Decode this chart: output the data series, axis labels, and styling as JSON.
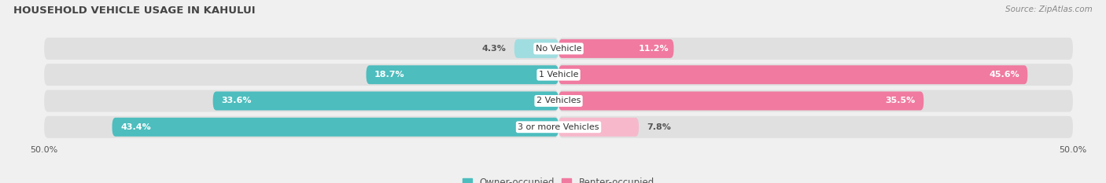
{
  "title": "HOUSEHOLD VEHICLE USAGE IN KAHULUI",
  "source": "Source: ZipAtlas.com",
  "categories": [
    "No Vehicle",
    "1 Vehicle",
    "2 Vehicles",
    "3 or more Vehicles"
  ],
  "owner_values": [
    4.3,
    18.7,
    33.6,
    43.4
  ],
  "renter_values": [
    11.2,
    45.6,
    35.5,
    7.8
  ],
  "owner_color": "#4dbdbe",
  "renter_color": "#f07aa0",
  "owner_color_light": "#a0dde0",
  "renter_color_light": "#f7b8cc",
  "owner_label": "Owner-occupied",
  "renter_label": "Renter-occupied",
  "bg_color": "#f0f0f0",
  "bar_bg_color": "#e0e0e0",
  "title_color": "#444444",
  "source_color": "#888888",
  "label_color_dark": "#555555",
  "xlim_abs": 50
}
